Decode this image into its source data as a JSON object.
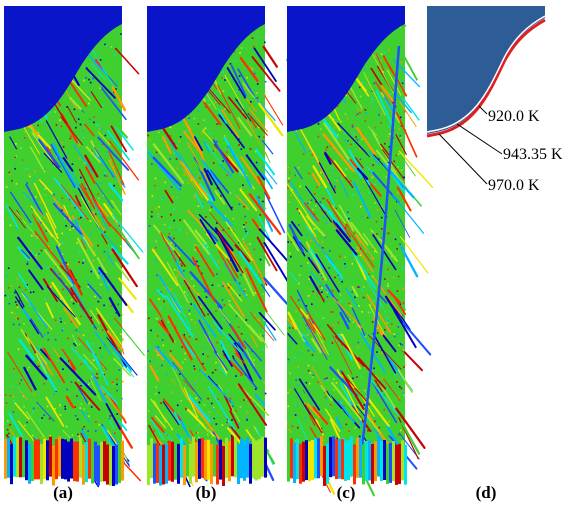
{
  "panels": [
    {
      "id": "a",
      "label": "(a)",
      "seed": 11,
      "streak": false
    },
    {
      "id": "b",
      "label": "(b)",
      "seed": 29,
      "streak": false
    },
    {
      "id": "c",
      "label": "(c)",
      "seed": 47,
      "streak": true
    },
    {
      "id": "d",
      "label": "(d)"
    }
  ],
  "temperature_labels": [
    "920.0 K",
    "943.35 K",
    "970.0 K"
  ],
  "colors": {
    "solid": "#0a14c8",
    "solid_d": "#2e5c96",
    "field_base": "#3fcf2e",
    "interface": "#e02020",
    "palette": [
      "#0000c0",
      "#1e50ff",
      "#00b4ff",
      "#00e6e6",
      "#3fcf2e",
      "#9fe52a",
      "#f0e600",
      "#ff9a00",
      "#ff3000",
      "#c80000"
    ]
  }
}
